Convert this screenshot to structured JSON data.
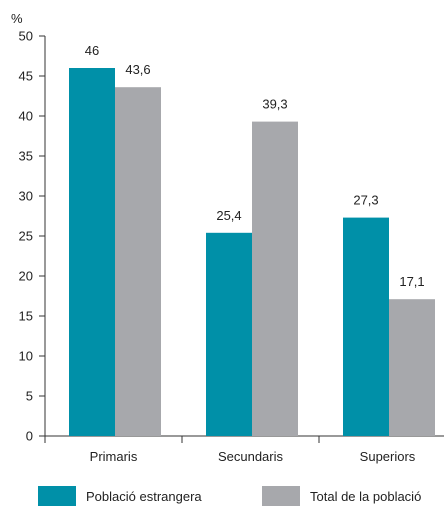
{
  "chart_data": {
    "type": "bar",
    "categories": [
      "Primaris",
      "Secundaris",
      "Superiors"
    ],
    "series": [
      {
        "name": "Població estrangera",
        "values": [
          46,
          25.4,
          27.3
        ],
        "labels": [
          "46",
          "25,4",
          "27,3"
        ],
        "color": "#0090a8"
      },
      {
        "name": "Total de la població",
        "values": [
          43.6,
          39.3,
          17.1
        ],
        "labels": [
          "43,6",
          "39,3",
          "17,1"
        ],
        "color": "#a7a8ac"
      }
    ],
    "ylabel": "%",
    "ylim": [
      0,
      50
    ],
    "yticks": [
      0,
      5,
      10,
      15,
      20,
      25,
      30,
      35,
      40,
      45,
      50
    ],
    "grid": false,
    "legend": "bottom"
  }
}
